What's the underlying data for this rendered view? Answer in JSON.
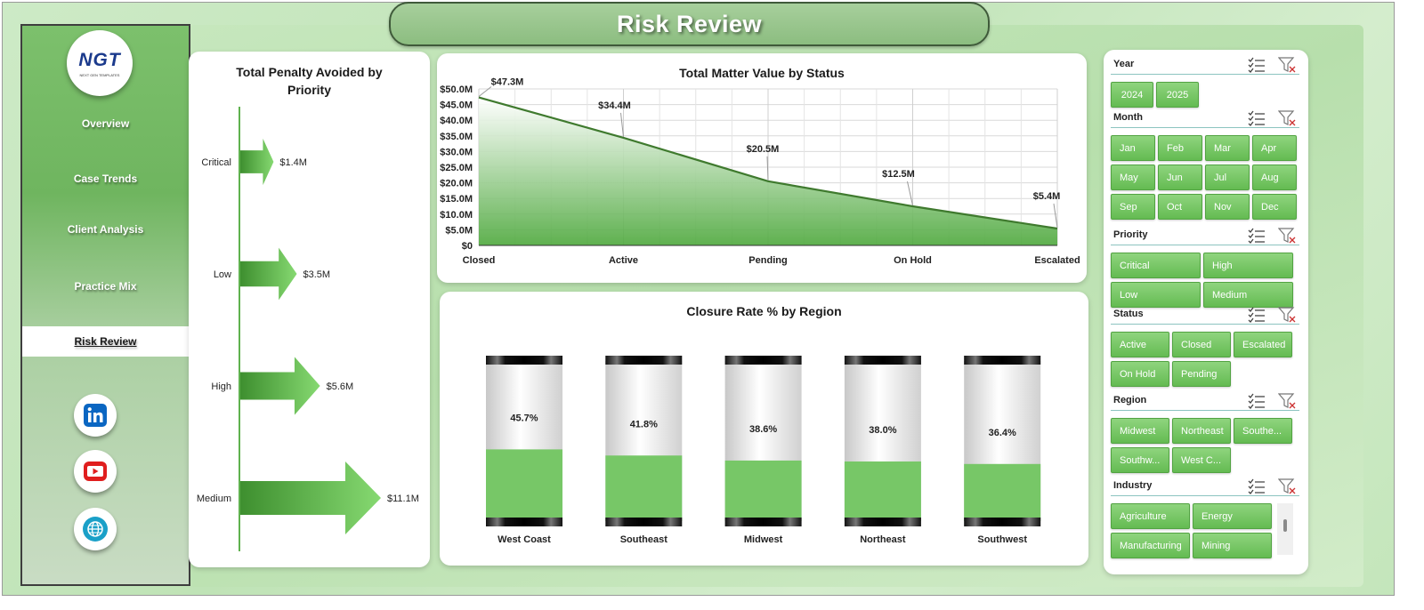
{
  "page_title": "Risk Review",
  "logo": {
    "text": "NGT",
    "subtext": "NEXT GEN TEMPLATES"
  },
  "sidebar": {
    "items": [
      {
        "label": "Overview",
        "active": false
      },
      {
        "label": "Case Trends",
        "active": false
      },
      {
        "label": "Client Analysis",
        "active": false
      },
      {
        "label": "Practice Mix",
        "active": false
      },
      {
        "label": "Risk Review",
        "active": true
      }
    ],
    "social": [
      "linkedin-icon",
      "youtube-icon",
      "globe-icon"
    ]
  },
  "colors": {
    "accent": "#6dbf5b",
    "line": "#3f7a2e",
    "title_bg": "#9cc891"
  },
  "chart_data": [
    {
      "id": "penalty",
      "type": "bar",
      "orientation": "horizontal",
      "title": "Total Penalty Avoided by Priority",
      "categories": [
        "Critical",
        "Low",
        "High",
        "Medium"
      ],
      "values": [
        1.4,
        3.5,
        5.6,
        11.1
      ],
      "value_labels": [
        "$1.4M",
        "$3.5M",
        "$5.6M",
        "$11.1M"
      ],
      "unit": "$M"
    },
    {
      "id": "matter",
      "type": "area",
      "title": "Total Matter Value by Status",
      "categories": [
        "Closed",
        "Active",
        "Pending",
        "On Hold",
        "Escalated"
      ],
      "values": [
        47.3,
        34.4,
        20.5,
        12.5,
        5.4
      ],
      "value_labels": [
        "$47.3M",
        "$34.4M",
        "$20.5M",
        "$12.5M",
        "$5.4M"
      ],
      "ylim": [
        0,
        50
      ],
      "yticks": [
        0,
        5,
        10,
        15,
        20,
        25,
        30,
        35,
        40,
        45,
        50
      ],
      "ytick_labels": [
        "$0",
        "$5.0M",
        "$10.0M",
        "$15.0M",
        "$20.0M",
        "$25.0M",
        "$30.0M",
        "$35.0M",
        "$40.0M",
        "$45.0M",
        "$50.0M"
      ],
      "grid": true
    },
    {
      "id": "closure",
      "type": "bar",
      "title": "Closure  Rate % by Region",
      "categories": [
        "West Coast",
        "Southeast",
        "Midwest",
        "Northeast",
        "Southwest"
      ],
      "values": [
        45.7,
        41.8,
        38.6,
        38.0,
        36.4
      ],
      "value_labels": [
        "45.7%",
        "41.8%",
        "38.6%",
        "38.0%",
        "36.4%"
      ],
      "ylim": [
        0,
        100
      ]
    }
  ],
  "slicers": [
    {
      "title": "Year",
      "items": [
        "2024",
        "2025"
      ]
    },
    {
      "title": "Month",
      "items": [
        "Jan",
        "Feb",
        "Mar",
        "Apr",
        "May",
        "Jun",
        "Jul",
        "Aug",
        "Sep",
        "Oct",
        "Nov",
        "Dec"
      ]
    },
    {
      "title": "Priority",
      "items": [
        "Critical",
        "High",
        "Low",
        "Medium"
      ]
    },
    {
      "title": "Status",
      "items": [
        "Active",
        "Closed",
        "Escalated",
        "On Hold",
        "Pending"
      ]
    },
    {
      "title": "Region",
      "items": [
        "Midwest",
        "Northeast",
        "Southe...",
        "Southw...",
        "West C..."
      ]
    },
    {
      "title": "Industry",
      "items": [
        "Agriculture",
        "Energy",
        "Manufacturing",
        "Mining"
      ]
    }
  ]
}
